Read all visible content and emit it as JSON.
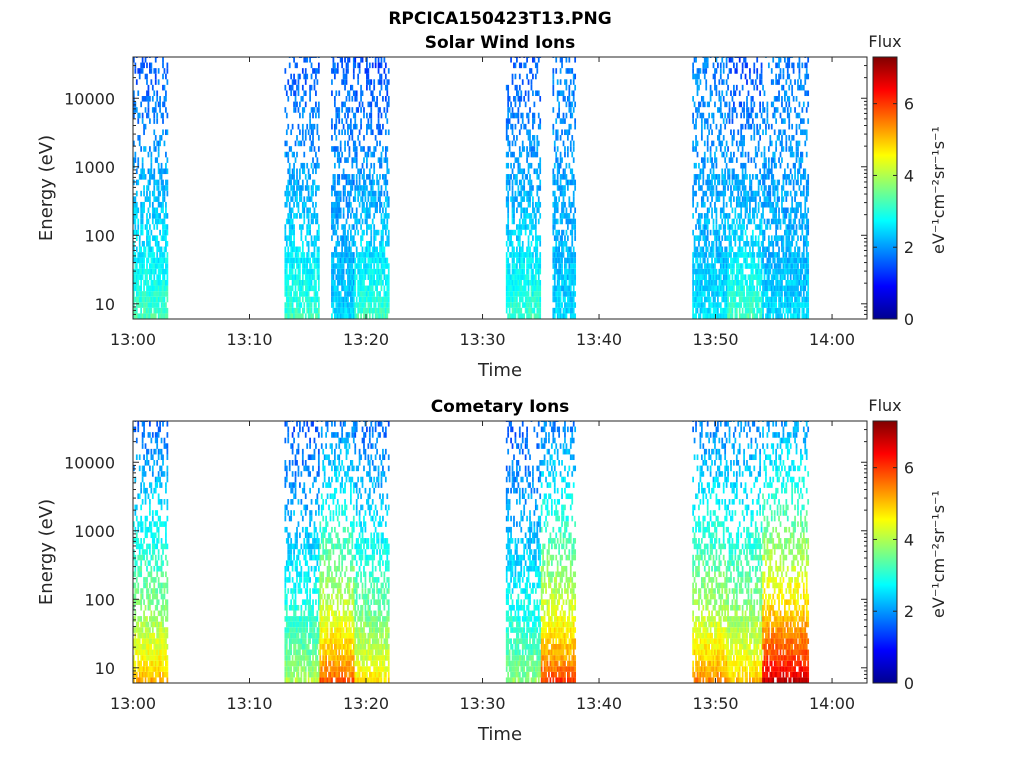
{
  "figure": {
    "title": "RPCICA150423T13.PNG"
  },
  "chart_data": [
    {
      "type": "heatmap",
      "title": "Solar Wind Ions",
      "xlabel": "Time",
      "ylabel": "Energy (eV)",
      "yscale": "log",
      "xlim": [
        "13:00",
        "14:03"
      ],
      "ylim": [
        6,
        40000
      ],
      "x_ticks": [
        "13:00",
        "13:10",
        "13:20",
        "13:30",
        "13:40",
        "13:50",
        "14:00"
      ],
      "y_ticks": [
        "10",
        "100",
        "1000",
        "10000"
      ],
      "colorbar": {
        "title": "Flux",
        "label": "eV⁻¹cm⁻²sr⁻¹s⁻¹",
        "ticks": [
          "0",
          "2",
          "4",
          "6"
        ],
        "range": [
          0,
          7.3
        ],
        "colormap": "jet"
      },
      "bursts": [
        {
          "start": "13:00",
          "end": "13:03",
          "flux_low": 3.3,
          "flux_high": 1.5
        },
        {
          "start": "13:13",
          "end": "13:16",
          "flux_low": 3.2,
          "flux_high": 1.5
        },
        {
          "start": "13:17",
          "end": "13:19",
          "flux_low": 2.5,
          "flux_high": 1.6
        },
        {
          "start": "13:19",
          "end": "13:22",
          "flux_low": 3.2,
          "flux_high": 1.4
        },
        {
          "start": "13:32",
          "end": "13:35",
          "flux_low": 3.2,
          "flux_high": 1.5
        },
        {
          "start": "13:36",
          "end": "13:38",
          "flux_low": 2.5,
          "flux_high": 1.8
        },
        {
          "start": "13:48",
          "end": "13:51",
          "flux_low": 2.6,
          "flux_high": 1.8
        },
        {
          "start": "13:51",
          "end": "13:54",
          "flux_low": 3.3,
          "flux_high": 1.4
        },
        {
          "start": "13:54",
          "end": "13:58",
          "flux_low": 2.5,
          "flux_high": 1.8
        }
      ]
    },
    {
      "type": "heatmap",
      "title": "Cometary Ions",
      "xlabel": "Time",
      "ylabel": "Energy (eV)",
      "yscale": "log",
      "xlim": [
        "13:00",
        "14:03"
      ],
      "ylim": [
        6,
        40000
      ],
      "x_ticks": [
        "13:00",
        "13:10",
        "13:20",
        "13:30",
        "13:40",
        "13:50",
        "14:00"
      ],
      "y_ticks": [
        "10",
        "100",
        "1000",
        "10000"
      ],
      "colorbar": {
        "title": "Flux",
        "label": "eV⁻¹cm⁻²sr⁻¹s⁻¹",
        "ticks": [
          "0",
          "2",
          "4",
          "6"
        ],
        "range": [
          0,
          7.3
        ],
        "colormap": "jet"
      },
      "bursts": [
        {
          "start": "13:00",
          "end": "13:03",
          "flux_low": 5.2,
          "flux_high": 1.6
        },
        {
          "start": "13:13",
          "end": "13:16",
          "flux_low": 4.0,
          "flux_high": 1.5
        },
        {
          "start": "13:16",
          "end": "13:19",
          "flux_low": 5.8,
          "flux_high": 1.8
        },
        {
          "start": "13:19",
          "end": "13:22",
          "flux_low": 4.8,
          "flux_high": 1.6
        },
        {
          "start": "13:32",
          "end": "13:35",
          "flux_low": 3.8,
          "flux_high": 1.5
        },
        {
          "start": "13:35",
          "end": "13:38",
          "flux_low": 6.0,
          "flux_high": 1.8
        },
        {
          "start": "13:48",
          "end": "13:51",
          "flux_low": 5.5,
          "flux_high": 1.8
        },
        {
          "start": "13:51",
          "end": "13:54",
          "flux_low": 5.0,
          "flux_high": 1.9
        },
        {
          "start": "13:54",
          "end": "13:58",
          "flux_low": 6.8,
          "flux_high": 2.0
        }
      ]
    }
  ]
}
